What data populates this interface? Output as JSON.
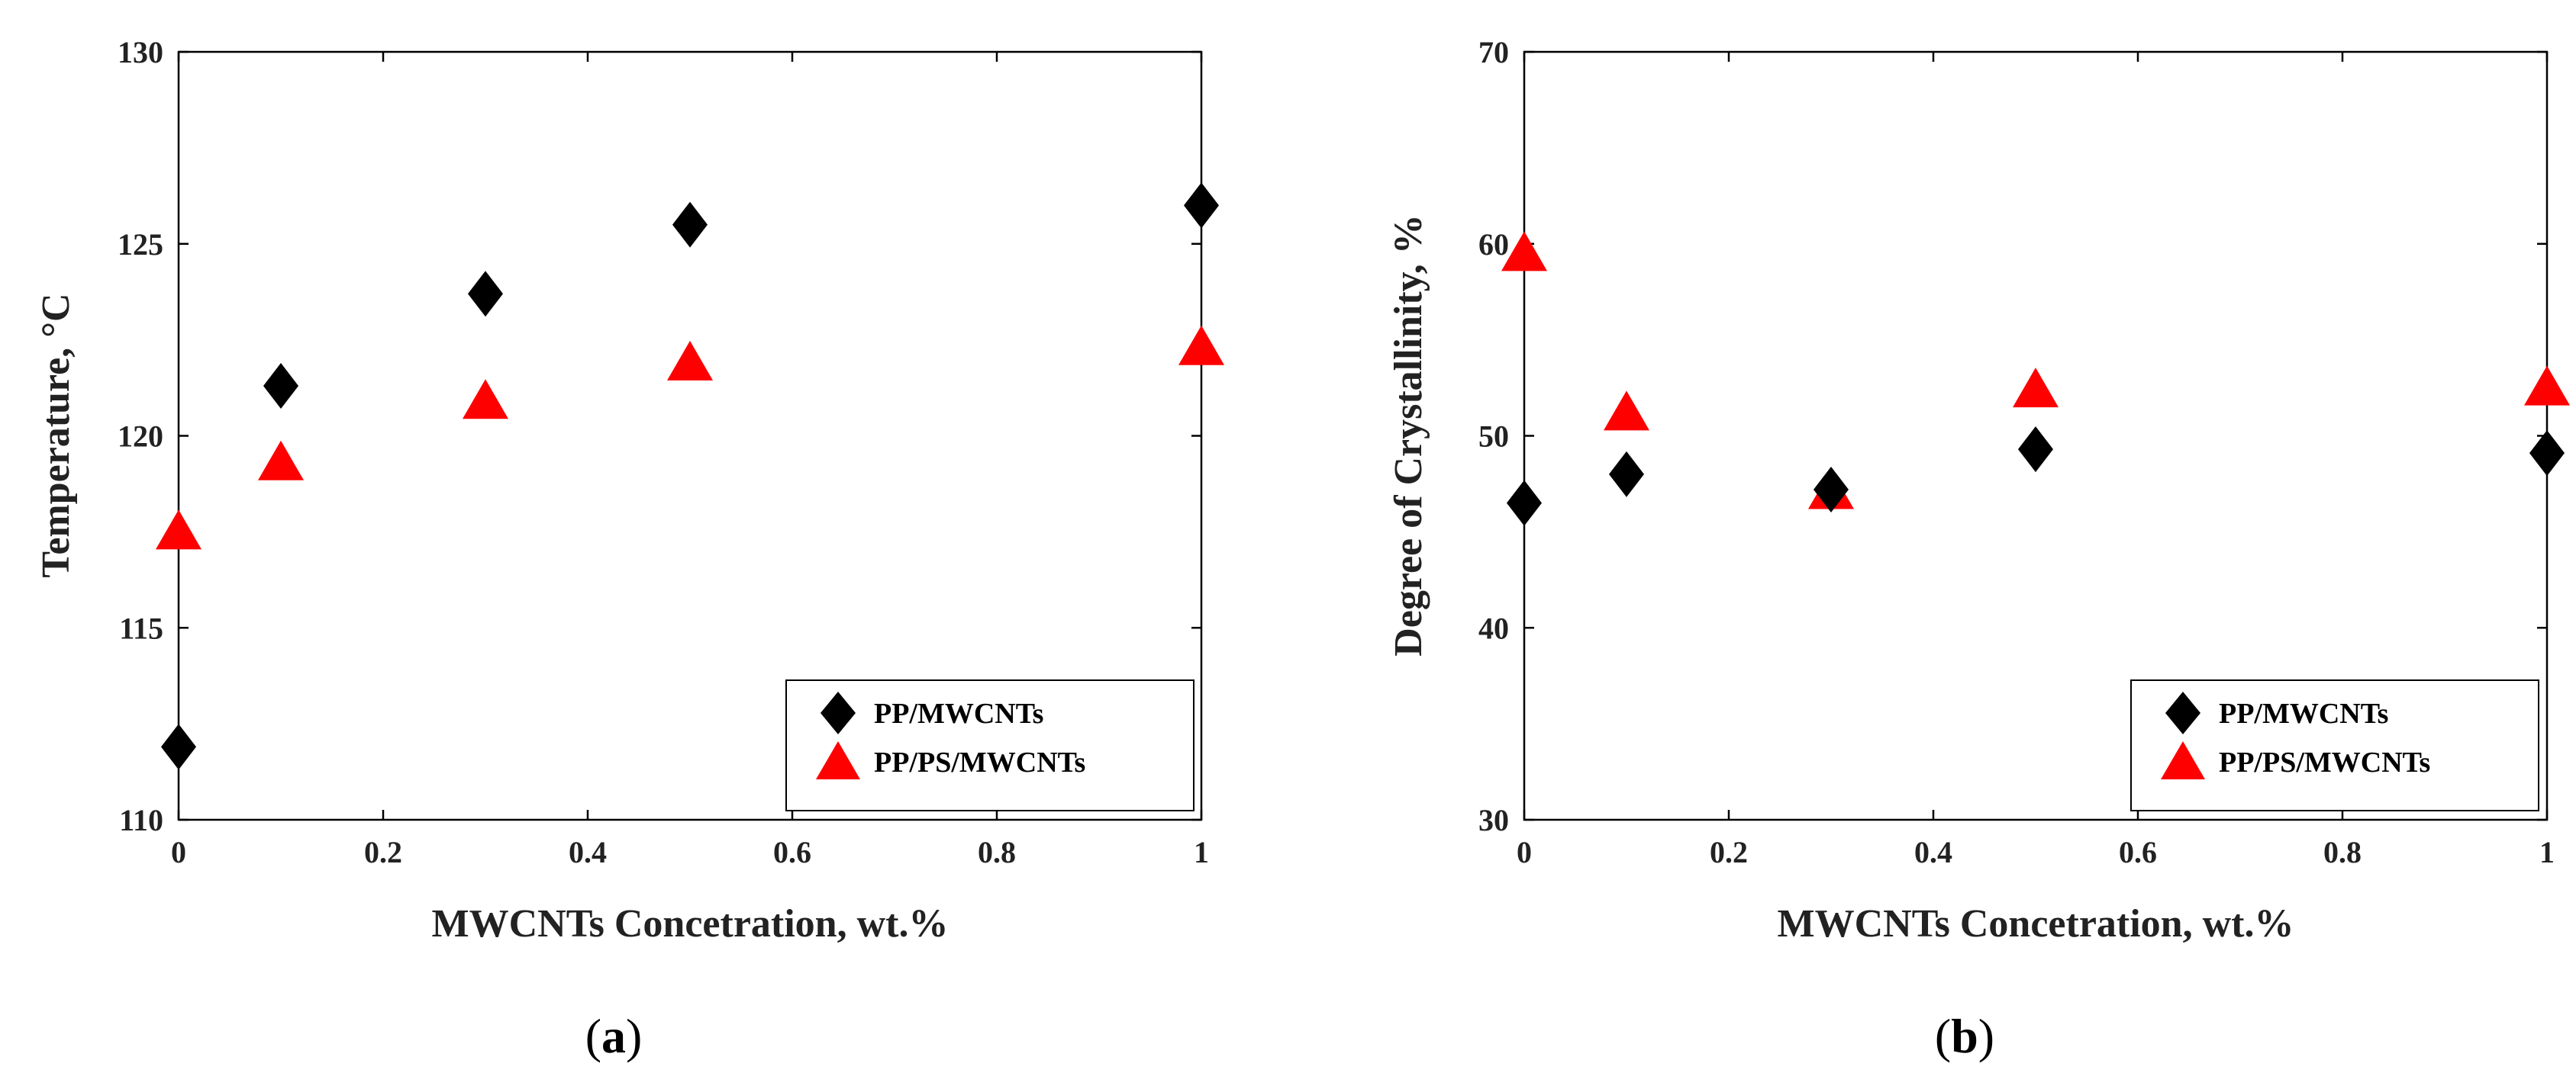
{
  "chart_data": [
    {
      "type": "scatter",
      "panel_label": "a",
      "title": "",
      "xlabel": "MWCNTs Concetration, wt.%",
      "ylabel": "Temperature, °C",
      "xlim": [
        0,
        1
      ],
      "ylim": [
        110,
        130
      ],
      "xticks": [
        0,
        0.2,
        0.4,
        0.6,
        0.8,
        1
      ],
      "xtick_labels": [
        "0",
        "0.2",
        "0.4",
        "0.6",
        "0.8",
        "1"
      ],
      "yticks": [
        110,
        115,
        120,
        125,
        130
      ],
      "ytick_labels": [
        "110",
        "115",
        "120",
        "125",
        "130"
      ],
      "grid": false,
      "legend_position": "bottom-right",
      "series": [
        {
          "name": "PP/MWCNTs",
          "marker": "diamond",
          "color": "#000000",
          "x": [
            0,
            0.1,
            0.3,
            0.5,
            1
          ],
          "y": [
            111.9,
            121.3,
            123.7,
            125.5,
            126.0
          ]
        },
        {
          "name": "PP/PS/MWCNTs",
          "marker": "triangle",
          "color": "#ff0000",
          "x": [
            0,
            0.1,
            0.3,
            0.5,
            1
          ],
          "y": [
            117.4,
            119.2,
            120.8,
            121.8,
            122.2
          ]
        }
      ]
    },
    {
      "type": "scatter",
      "panel_label": "b",
      "title": "",
      "xlabel": "MWCNTs Concetration, wt.%",
      "ylabel": "Degree of Crystallinity, %",
      "xlim": [
        0,
        1
      ],
      "ylim": [
        30,
        70
      ],
      "xticks": [
        0,
        0.2,
        0.4,
        0.6,
        0.8,
        1
      ],
      "xtick_labels": [
        "0",
        "0.2",
        "0.4",
        "0.6",
        "0.8",
        "1"
      ],
      "yticks": [
        30,
        40,
        50,
        60,
        70
      ],
      "ytick_labels": [
        "30",
        "40",
        "50",
        "60",
        "70"
      ],
      "grid": false,
      "legend_position": "bottom-right",
      "series": [
        {
          "name": "PP/MWCNTs",
          "marker": "diamond",
          "color": "#000000",
          "x": [
            0,
            0.1,
            0.3,
            0.5,
            1
          ],
          "y": [
            46.5,
            48.0,
            47.2,
            49.3,
            49.1
          ]
        },
        {
          "name": "PP/PS/MWCNTs",
          "marker": "triangle",
          "color": "#ff0000",
          "x": [
            0,
            0.1,
            0.3,
            0.5,
            1
          ],
          "y": [
            59.3,
            51.0,
            46.9,
            52.2,
            52.3
          ]
        }
      ]
    }
  ]
}
